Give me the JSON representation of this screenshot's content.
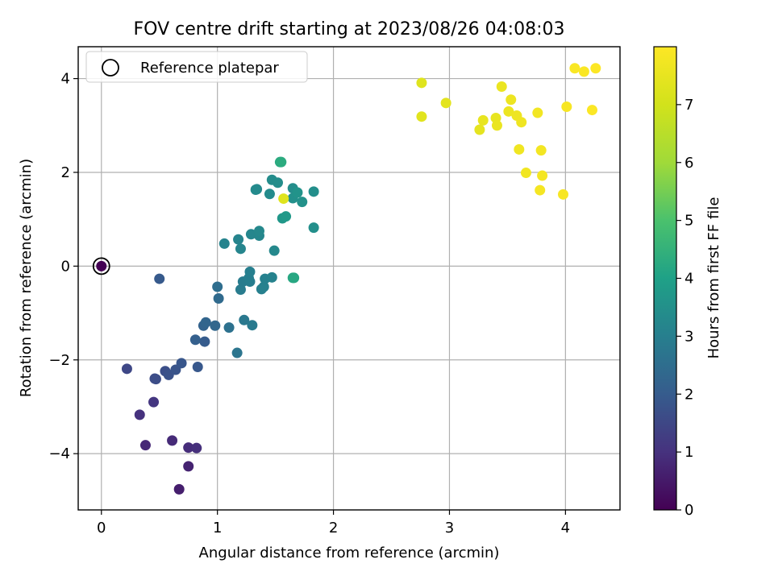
{
  "chart_data": {
    "type": "scatter",
    "title": "FOV centre drift starting at 2023/08/26 04:08:03",
    "xlabel": "Angular distance from reference (arcmin)",
    "ylabel": "Rotation from reference (arcmin)",
    "xlim": [
      -0.2,
      4.47
    ],
    "ylim": [
      -5.2,
      4.68
    ],
    "xticks": [
      0,
      1,
      2,
      3,
      4
    ],
    "xtick_labels": [
      "0",
      "1",
      "2",
      "3",
      "4"
    ],
    "yticks": [
      -4,
      -2,
      0,
      2,
      4
    ],
    "ytick_labels": [
      "−4",
      "−2",
      "0",
      "2",
      "4"
    ],
    "grid": true,
    "legend": {
      "position": "top-left",
      "entries": [
        "Reference platepar"
      ]
    },
    "colorbar": {
      "label": "Hours from first FF file",
      "colormap": "viridis",
      "range": [
        0,
        8
      ],
      "ticks": [
        0,
        1,
        2,
        3,
        4,
        5,
        6,
        7
      ],
      "tick_labels": [
        "0",
        "1",
        "2",
        "3",
        "4",
        "5",
        "6",
        "7"
      ]
    },
    "reference_point": {
      "x": 0,
      "y": 0
    },
    "points": [
      {
        "x": 0.0,
        "y": 0.0,
        "c": 0.0
      },
      {
        "x": 0.67,
        "y": -4.76,
        "c": 0.6
      },
      {
        "x": 0.75,
        "y": -4.27,
        "c": 0.7
      },
      {
        "x": 0.38,
        "y": -3.82,
        "c": 0.8
      },
      {
        "x": 0.61,
        "y": -3.72,
        "c": 0.85
      },
      {
        "x": 0.75,
        "y": -3.87,
        "c": 0.9
      },
      {
        "x": 0.82,
        "y": -3.88,
        "c": 0.95
      },
      {
        "x": 0.33,
        "y": -3.17,
        "c": 1.0
      },
      {
        "x": 0.45,
        "y": -2.9,
        "c": 1.1
      },
      {
        "x": 0.22,
        "y": -2.19,
        "c": 1.5
      },
      {
        "x": 0.46,
        "y": -2.4,
        "c": 1.6
      },
      {
        "x": 0.47,
        "y": -2.41,
        "c": 1.65
      },
      {
        "x": 0.55,
        "y": -2.24,
        "c": 1.7
      },
      {
        "x": 0.58,
        "y": -2.32,
        "c": 1.75
      },
      {
        "x": 0.64,
        "y": -2.21,
        "c": 1.8
      },
      {
        "x": 0.69,
        "y": -2.07,
        "c": 1.85
      },
      {
        "x": 0.83,
        "y": -2.15,
        "c": 1.9
      },
      {
        "x": 0.5,
        "y": -0.27,
        "c": 1.95
      },
      {
        "x": 0.89,
        "y": -1.61,
        "c": 2.0
      },
      {
        "x": 0.81,
        "y": -1.57,
        "c": 2.1
      },
      {
        "x": 0.88,
        "y": -1.27,
        "c": 2.2
      },
      {
        "x": 0.9,
        "y": -1.2,
        "c": 2.25
      },
      {
        "x": 0.98,
        "y": -1.27,
        "c": 2.3
      },
      {
        "x": 1.01,
        "y": -0.69,
        "c": 2.4
      },
      {
        "x": 1.0,
        "y": -0.44,
        "c": 2.5
      },
      {
        "x": 1.1,
        "y": -1.31,
        "c": 2.6
      },
      {
        "x": 1.17,
        "y": -1.85,
        "c": 2.7
      },
      {
        "x": 1.23,
        "y": -1.15,
        "c": 2.8
      },
      {
        "x": 1.3,
        "y": -1.26,
        "c": 2.85
      },
      {
        "x": 1.2,
        "y": -0.5,
        "c": 2.9
      },
      {
        "x": 1.22,
        "y": -0.33,
        "c": 2.92
      },
      {
        "x": 1.28,
        "y": -0.33,
        "c": 2.95
      },
      {
        "x": 1.27,
        "y": -0.26,
        "c": 2.97
      },
      {
        "x": 1.28,
        "y": -0.12,
        "c": 3.0
      },
      {
        "x": 1.38,
        "y": -0.49,
        "c": 3.02
      },
      {
        "x": 1.4,
        "y": -0.44,
        "c": 3.05
      },
      {
        "x": 1.41,
        "y": -0.27,
        "c": 3.07
      },
      {
        "x": 1.47,
        "y": -0.24,
        "c": 3.1
      },
      {
        "x": 1.06,
        "y": 0.48,
        "c": 3.12
      },
      {
        "x": 1.18,
        "y": 0.57,
        "c": 3.15
      },
      {
        "x": 1.2,
        "y": 0.37,
        "c": 3.17
      },
      {
        "x": 1.29,
        "y": 0.68,
        "c": 3.2
      },
      {
        "x": 1.36,
        "y": 0.65,
        "c": 3.22
      },
      {
        "x": 1.36,
        "y": 0.75,
        "c": 3.25
      },
      {
        "x": 1.49,
        "y": 0.33,
        "c": 3.27
      },
      {
        "x": 1.34,
        "y": 1.64,
        "c": 3.3
      },
      {
        "x": 1.33,
        "y": 1.63,
        "c": 3.32
      },
      {
        "x": 1.45,
        "y": 1.54,
        "c": 3.35
      },
      {
        "x": 1.47,
        "y": 1.84,
        "c": 3.37
      },
      {
        "x": 1.52,
        "y": 1.78,
        "c": 3.4
      },
      {
        "x": 1.65,
        "y": 1.66,
        "c": 3.42
      },
      {
        "x": 1.83,
        "y": 1.59,
        "c": 3.45
      },
      {
        "x": 1.83,
        "y": 0.82,
        "c": 3.47
      },
      {
        "x": 1.65,
        "y": 1.45,
        "c": 3.5
      },
      {
        "x": 1.73,
        "y": 1.37,
        "c": 3.52
      },
      {
        "x": 1.69,
        "y": 1.57,
        "c": 3.6
      },
      {
        "x": 1.56,
        "y": 1.02,
        "c": 3.7
      },
      {
        "x": 1.59,
        "y": 1.06,
        "c": 3.75
      },
      {
        "x": 1.66,
        "y": -0.25,
        "c": 4.15
      },
      {
        "x": 1.65,
        "y": -0.25,
        "c": 4.2
      },
      {
        "x": 1.54,
        "y": 2.22,
        "c": 4.25
      },
      {
        "x": 1.55,
        "y": 2.22,
        "c": 4.3
      },
      {
        "x": 1.57,
        "y": 1.44,
        "c": 7.3
      },
      {
        "x": 2.76,
        "y": 3.91,
        "c": 7.3
      },
      {
        "x": 2.76,
        "y": 3.19,
        "c": 7.35
      },
      {
        "x": 2.97,
        "y": 3.48,
        "c": 7.4
      },
      {
        "x": 3.26,
        "y": 2.91,
        "c": 7.45
      },
      {
        "x": 3.29,
        "y": 3.11,
        "c": 7.5
      },
      {
        "x": 3.4,
        "y": 3.16,
        "c": 7.52
      },
      {
        "x": 3.41,
        "y": 3.0,
        "c": 7.55
      },
      {
        "x": 3.45,
        "y": 3.83,
        "c": 7.57
      },
      {
        "x": 3.51,
        "y": 3.3,
        "c": 7.6
      },
      {
        "x": 3.53,
        "y": 3.55,
        "c": 7.62
      },
      {
        "x": 3.58,
        "y": 3.21,
        "c": 7.65
      },
      {
        "x": 3.62,
        "y": 3.07,
        "c": 7.67
      },
      {
        "x": 3.6,
        "y": 2.49,
        "c": 7.7
      },
      {
        "x": 3.66,
        "y": 1.99,
        "c": 7.72
      },
      {
        "x": 3.76,
        "y": 3.27,
        "c": 7.75
      },
      {
        "x": 3.79,
        "y": 2.47,
        "c": 7.77
      },
      {
        "x": 3.8,
        "y": 1.93,
        "c": 7.8
      },
      {
        "x": 3.78,
        "y": 1.62,
        "c": 7.82
      },
      {
        "x": 3.98,
        "y": 1.53,
        "c": 7.85
      },
      {
        "x": 4.01,
        "y": 3.4,
        "c": 7.87
      },
      {
        "x": 4.08,
        "y": 4.22,
        "c": 7.9
      },
      {
        "x": 4.16,
        "y": 4.15,
        "c": 7.92
      },
      {
        "x": 4.23,
        "y": 3.33,
        "c": 7.95
      },
      {
        "x": 4.26,
        "y": 4.22,
        "c": 7.97
      }
    ]
  }
}
